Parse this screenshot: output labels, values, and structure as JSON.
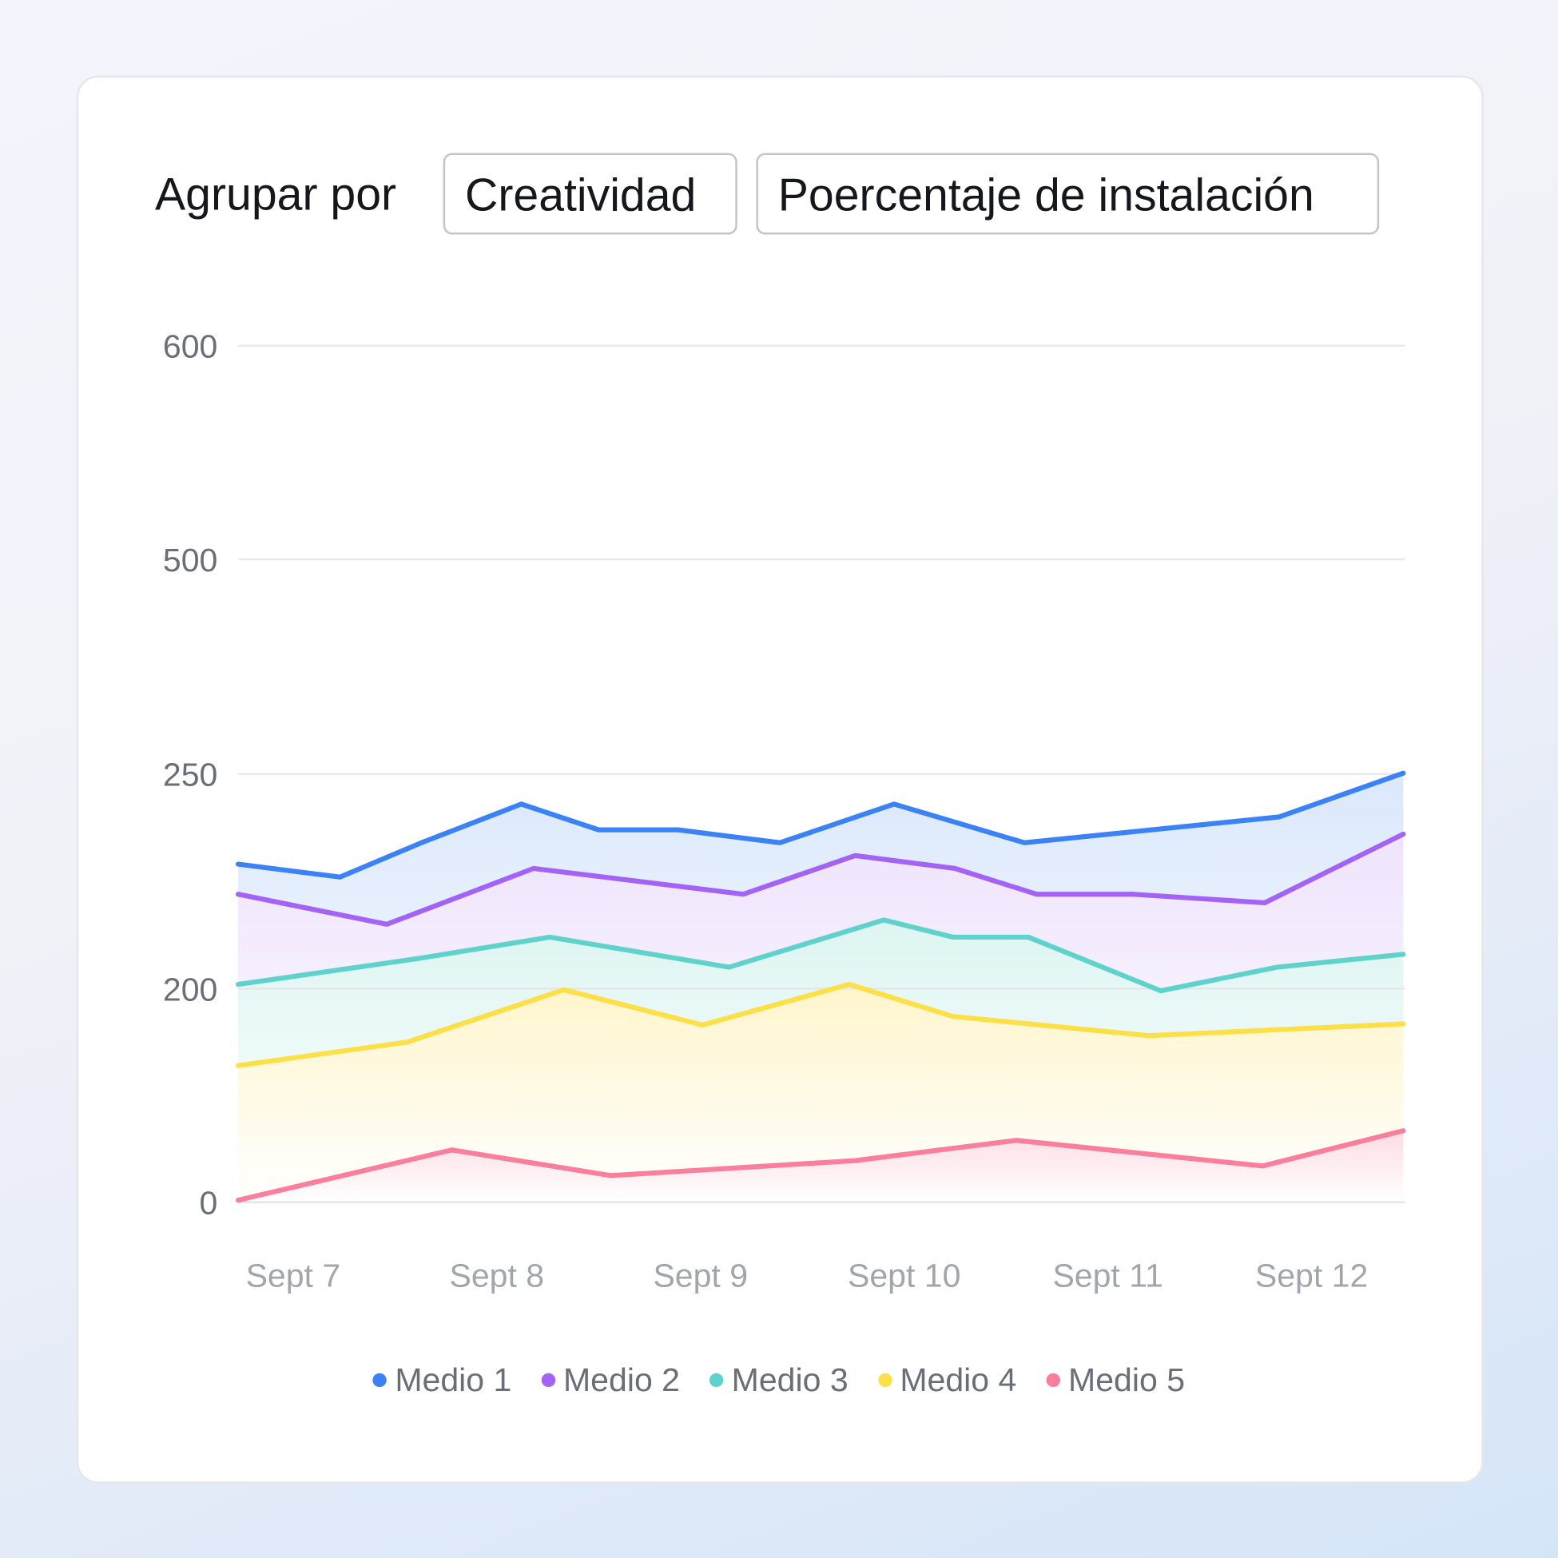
{
  "header": {
    "group_by_label": "Agrupar por",
    "select_1": "Creatividad",
    "select_2": "Poercentaje de instalación"
  },
  "chart_data": {
    "type": "area",
    "title": "",
    "xlabel": "",
    "ylabel": "",
    "y_ticks": [
      0,
      200,
      250,
      500,
      600
    ],
    "x_tick_labels": [
      "Sept 7",
      "Sept 8",
      "Sept 9",
      "Sept 10",
      "Sept 11",
      "Sept 12"
    ],
    "x_tick_days": [
      7,
      8,
      9,
      10,
      11,
      12
    ],
    "x_range_days": [
      6.73,
      12.45
    ],
    "grid": true,
    "legend": "bottom",
    "series": [
      {
        "name": "Medio 1",
        "color": "#3b82f6",
        "fill": "#dbe8fc",
        "x": [
          6.73,
          7.23,
          7.63,
          8.12,
          8.5,
          8.89,
          9.39,
          9.95,
          10.59,
          11.84,
          12.45
        ],
        "y": [
          229,
          226,
          234,
          243,
          237,
          237,
          234,
          243,
          234,
          240,
          251
        ]
      },
      {
        "name": "Medio 2",
        "color": "#a463f7",
        "fill": "#efe4fd",
        "x": [
          6.73,
          7.46,
          8.18,
          9.21,
          9.76,
          10.25,
          10.65,
          11.12,
          11.77,
          12.45
        ],
        "y": [
          222,
          215,
          228,
          222,
          231,
          228,
          222,
          222,
          220,
          236
        ]
      },
      {
        "name": "Medio 3",
        "color": "#5fd3cb",
        "fill": "#ddf5f2",
        "x": [
          6.73,
          7.61,
          8.26,
          9.14,
          9.9,
          10.24,
          10.61,
          11.26,
          11.83,
          12.45
        ],
        "y": [
          201,
          207,
          212,
          205,
          216,
          212,
          212,
          198,
          205,
          208
        ]
      },
      {
        "name": "Medio 4",
        "color": "#fde047",
        "fill": "#fff5cc",
        "x": [
          6.73,
          7.56,
          8.33,
          9.01,
          9.73,
          10.24,
          11.2,
          12.45
        ],
        "y": [
          128,
          150,
          199,
          166,
          201,
          174,
          156,
          167
        ]
      },
      {
        "name": "Medio 5",
        "color": "#fb7f9c",
        "fill": "#fcdde4",
        "x": [
          6.73,
          7.78,
          8.56,
          9.76,
          10.55,
          11.76,
          12.45
        ],
        "y": [
          2,
          49,
          25,
          39,
          58,
          34,
          67
        ]
      }
    ]
  }
}
